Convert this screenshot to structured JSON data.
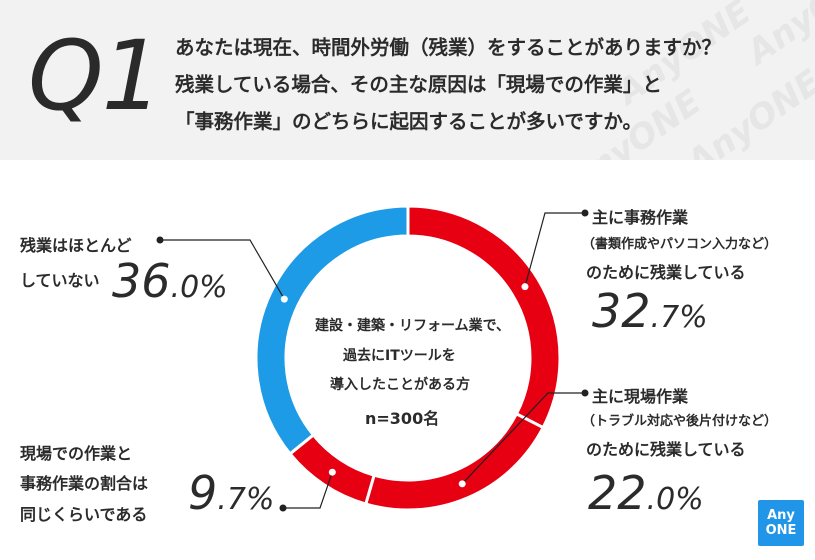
{
  "header": {
    "q_label": "Q1",
    "question_lines": [
      "あなたは現在、時間外労働（残業）をすることがありますか？",
      "残業している場合、その主な原因は「現場での作業」と",
      "「事務作業」のどちらに起因することが多いですか。"
    ],
    "watermark": "AnyONE"
  },
  "center": {
    "lines": [
      "建設・建築・リフォーム業で、",
      "過去にITツールを",
      "導入したことがある方"
    ],
    "n": "n=300名"
  },
  "labels": {
    "office": {
      "lines": [
        "主に事務作業",
        "（書類作成やパソコン入力など）",
        "のために残業している"
      ],
      "value_int": "32",
      "value_dec": ".7%"
    },
    "site": {
      "lines": [
        "主に現場作業",
        "（トラブル対応や後片付けなど）",
        "のために残業している"
      ],
      "value_int": "22",
      "value_dec": ".0%"
    },
    "equal": {
      "lines": [
        "現場での作業と",
        "事務作業の割合は",
        "同じくらいである"
      ],
      "value_int": "9",
      "value_dec": ".7%"
    },
    "none": {
      "lines": [
        "残業はほとんど",
        "していない"
      ],
      "value_int": "36",
      "value_dec": ".0%"
    }
  },
  "logo": {
    "line1": "Any",
    "line2": "ONE"
  },
  "chart_data": {
    "type": "pie",
    "style": "donut",
    "title": "",
    "slices": [
      {
        "label": "主に事務作業（書類作成やパソコン入力など）のために残業している",
        "value": 32.7,
        "color": "#e60012"
      },
      {
        "label": "主に現場作業（トラブル対応や後片付けなど）のために残業している",
        "value": 22.0,
        "color": "#e60012"
      },
      {
        "label": "現場での作業と事務作業の割合は同じくらいである",
        "value": 9.7,
        "color": "#e60012"
      },
      {
        "label": "残業はほとんどしていない",
        "value": 36.0,
        "color": "#1e9be6"
      }
    ],
    "start_angle_deg": 0,
    "direction": "clockwise",
    "separator_color": "#ffffff",
    "value_unit": "%"
  }
}
